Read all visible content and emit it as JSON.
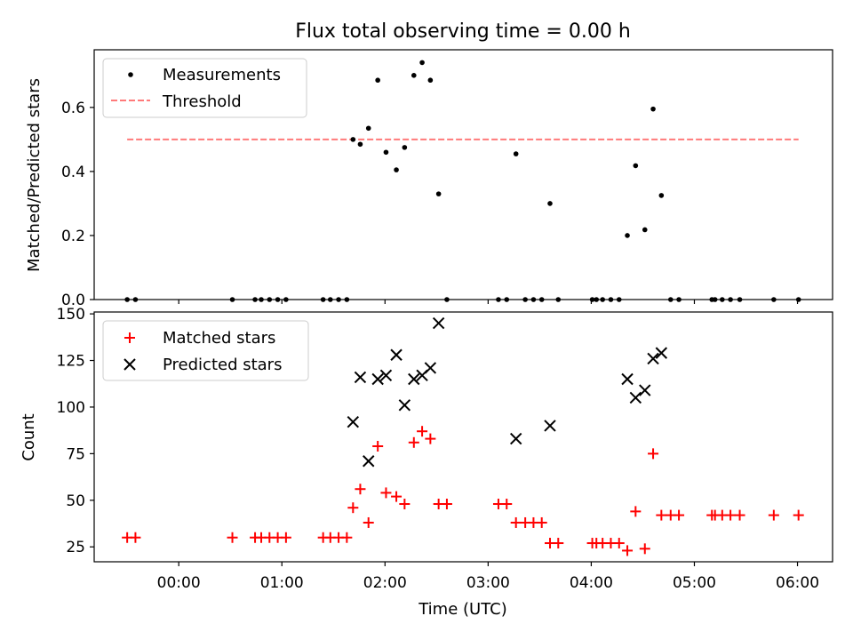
{
  "figure": {
    "title": "Flux total observing time = 0.00 h",
    "xlabel": "Time (UTC)",
    "x_ticks": [
      "00:00",
      "01:00",
      "02:00",
      "03:00",
      "04:00",
      "05:00",
      "06:00"
    ]
  },
  "chart_data": [
    {
      "type": "scatter",
      "panel": "top",
      "ylabel": "Matched/Predicted stars",
      "ylim": [
        0,
        0.78
      ],
      "y_ticks": [
        "0.0",
        "0.2",
        "0.4",
        "0.6"
      ],
      "x_unit": "hours (UTC)",
      "xlim": [
        -0.82,
        6.34
      ],
      "legend_position": "upper-left",
      "series": [
        {
          "name": "Measurements",
          "marker": "dot",
          "color": "#000000",
          "points": [
            [
              -0.5,
              0
            ],
            [
              -0.42,
              0
            ],
            [
              0.52,
              0
            ],
            [
              0.74,
              0
            ],
            [
              0.8,
              0
            ],
            [
              0.88,
              0
            ],
            [
              0.96,
              0
            ],
            [
              1.04,
              0
            ],
            [
              1.4,
              0
            ],
            [
              1.47,
              0
            ],
            [
              1.55,
              0
            ],
            [
              1.63,
              0
            ],
            [
              1.69,
              0.5
            ],
            [
              1.76,
              0.485
            ],
            [
              1.84,
              0.535
            ],
            [
              1.93,
              0.685
            ],
            [
              2.01,
              0.46
            ],
            [
              2.11,
              0.405
            ],
            [
              2.19,
              0.475
            ],
            [
              2.28,
              0.7
            ],
            [
              2.36,
              0.74
            ],
            [
              2.44,
              0.685
            ],
            [
              2.52,
              0.33
            ],
            [
              2.6,
              0
            ],
            [
              3.1,
              0
            ],
            [
              3.18,
              0
            ],
            [
              3.27,
              0.455
            ],
            [
              3.36,
              0
            ],
            [
              3.44,
              0
            ],
            [
              3.52,
              0
            ],
            [
              3.6,
              0.3
            ],
            [
              3.68,
              0
            ],
            [
              4.01,
              0
            ],
            [
              4.05,
              0
            ],
            [
              4.11,
              0
            ],
            [
              4.19,
              0
            ],
            [
              4.27,
              0
            ],
            [
              4.35,
              0.2
            ],
            [
              4.43,
              0.418
            ],
            [
              4.52,
              0.218
            ],
            [
              4.6,
              0.595
            ],
            [
              4.68,
              0.325
            ],
            [
              4.77,
              0
            ],
            [
              4.85,
              0
            ],
            [
              5.17,
              0
            ],
            [
              5.2,
              0
            ],
            [
              5.27,
              0
            ],
            [
              5.35,
              0
            ],
            [
              5.44,
              0
            ],
            [
              5.77,
              0
            ],
            [
              6.01,
              0
            ]
          ]
        },
        {
          "name": "Threshold",
          "line_style": "dashed",
          "color": "#ff7a7a",
          "points": [
            [
              -0.5,
              0.5
            ],
            [
              6.01,
              0.5
            ]
          ]
        }
      ]
    },
    {
      "type": "scatter",
      "panel": "bottom",
      "ylabel": "Count",
      "ylim": [
        17,
        151
      ],
      "y_ticks": [
        "25",
        "50",
        "75",
        "100",
        "125",
        "150"
      ],
      "x_unit": "hours (UTC)",
      "xlim": [
        -0.82,
        6.34
      ],
      "legend_position": "upper-left",
      "series": [
        {
          "name": "Matched stars",
          "marker": "plus",
          "color": "#ff0000",
          "points": [
            [
              -0.5,
              30
            ],
            [
              -0.42,
              30
            ],
            [
              0.52,
              30
            ],
            [
              0.74,
              30
            ],
            [
              0.8,
              30
            ],
            [
              0.88,
              30
            ],
            [
              0.96,
              30
            ],
            [
              1.04,
              30
            ],
            [
              1.4,
              30
            ],
            [
              1.47,
              30
            ],
            [
              1.55,
              30
            ],
            [
              1.63,
              30
            ],
            [
              1.69,
              46
            ],
            [
              1.76,
              56
            ],
            [
              1.84,
              38
            ],
            [
              1.93,
              79
            ],
            [
              2.01,
              54
            ],
            [
              2.11,
              52
            ],
            [
              2.19,
              48
            ],
            [
              2.28,
              81
            ],
            [
              2.36,
              87
            ],
            [
              2.44,
              83
            ],
            [
              2.52,
              48
            ],
            [
              2.6,
              48
            ],
            [
              3.1,
              48
            ],
            [
              3.18,
              48
            ],
            [
              3.27,
              38
            ],
            [
              3.36,
              38
            ],
            [
              3.44,
              38
            ],
            [
              3.52,
              38
            ],
            [
              3.6,
              27
            ],
            [
              3.68,
              27
            ],
            [
              4.01,
              27
            ],
            [
              4.05,
              27
            ],
            [
              4.11,
              27
            ],
            [
              4.19,
              27
            ],
            [
              4.27,
              27
            ],
            [
              4.35,
              23
            ],
            [
              4.43,
              44
            ],
            [
              4.52,
              24
            ],
            [
              4.6,
              75
            ],
            [
              4.68,
              42
            ],
            [
              4.77,
              42
            ],
            [
              4.85,
              42
            ],
            [
              5.17,
              42
            ],
            [
              5.2,
              42
            ],
            [
              5.27,
              42
            ],
            [
              5.35,
              42
            ],
            [
              5.44,
              42
            ],
            [
              5.77,
              42
            ],
            [
              6.01,
              42
            ]
          ]
        },
        {
          "name": "Predicted stars",
          "marker": "x",
          "color": "#000000",
          "points": [
            [
              1.69,
              92
            ],
            [
              1.76,
              116
            ],
            [
              1.84,
              71
            ],
            [
              1.93,
              115
            ],
            [
              2.01,
              117
            ],
            [
              2.11,
              128
            ],
            [
              2.19,
              101
            ],
            [
              2.28,
              115
            ],
            [
              2.36,
              117
            ],
            [
              2.44,
              121
            ],
            [
              2.52,
              145
            ],
            [
              3.27,
              83
            ],
            [
              3.6,
              90
            ],
            [
              4.35,
              115
            ],
            [
              4.43,
              105
            ],
            [
              4.52,
              109
            ],
            [
              4.6,
              126
            ],
            [
              4.68,
              129
            ]
          ]
        }
      ]
    }
  ]
}
